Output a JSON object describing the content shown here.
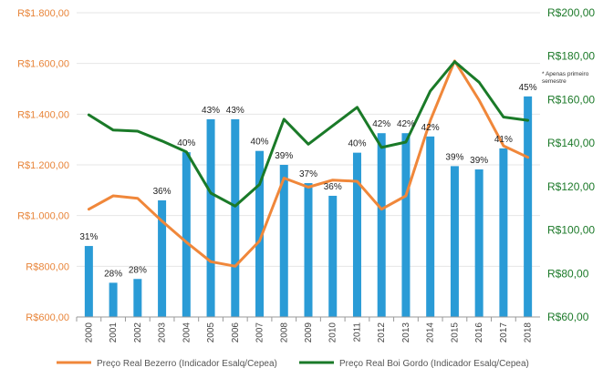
{
  "chart_data": {
    "type": "bar",
    "categories": [
      "2000",
      "2001",
      "2002",
      "2003",
      "2004",
      "2005",
      "2006",
      "2007",
      "2008",
      "2009",
      "2010",
      "2011",
      "2012",
      "2013",
      "2014",
      "2015",
      "2016",
      "2017",
      "2018"
    ],
    "bar_values": [
      880,
      735,
      750,
      1060,
      1250,
      1380,
      1380,
      1255,
      1200,
      1128,
      1078,
      1248,
      1325,
      1325,
      1312,
      1195,
      1182,
      1265,
      1470
    ],
    "bar_labels": [
      "31%",
      "28%",
      "28%",
      "36%",
      "40%",
      "43%",
      "43%",
      "40%",
      "39%",
      "37%",
      "36%",
      "40%",
      "42%",
      "42%",
      "42%",
      "39%",
      "39%",
      "41%",
      "45%"
    ],
    "series": [
      {
        "name": "Preço Real Bezerro (Indicador Esalq/Cepea)",
        "axis": "left",
        "color": "#f0873a",
        "values": [
          1025,
          1078,
          1068,
          978,
          895,
          818,
          800,
          900,
          1148,
          1112,
          1140,
          1135,
          1025,
          1078,
          1375,
          1610,
          1455,
          1275,
          1230
        ]
      },
      {
        "name": "Preço Real Boi Gordo (Indicador Esalq/Cepea)",
        "axis": "right",
        "color": "#1a7a28",
        "values": [
          153,
          146,
          145.5,
          141,
          136,
          117,
          111,
          121,
          151,
          139.5,
          148,
          156.5,
          138,
          140.5,
          164,
          177.5,
          168,
          152,
          150.5
        ]
      }
    ],
    "y_left": {
      "min": 600,
      "max": 1800,
      "ticks": [
        "R$600,00",
        "R$800,00",
        "R$1.000,00",
        "R$1.200,00",
        "R$1.400,00",
        "R$1.600,00",
        "R$1.800,00"
      ]
    },
    "y_right": {
      "min": 60,
      "max": 200,
      "ticks": [
        "R$60,00",
        "R$80,00",
        "R$100,00",
        "R$120,00",
        "R$140,00",
        "R$160,00",
        "R$180,00",
        "R$200,00"
      ]
    },
    "bar_color": "#2a9bd6",
    "note_lines": [
      "* Apenas primeiro",
      "semestre"
    ],
    "grid": true
  }
}
